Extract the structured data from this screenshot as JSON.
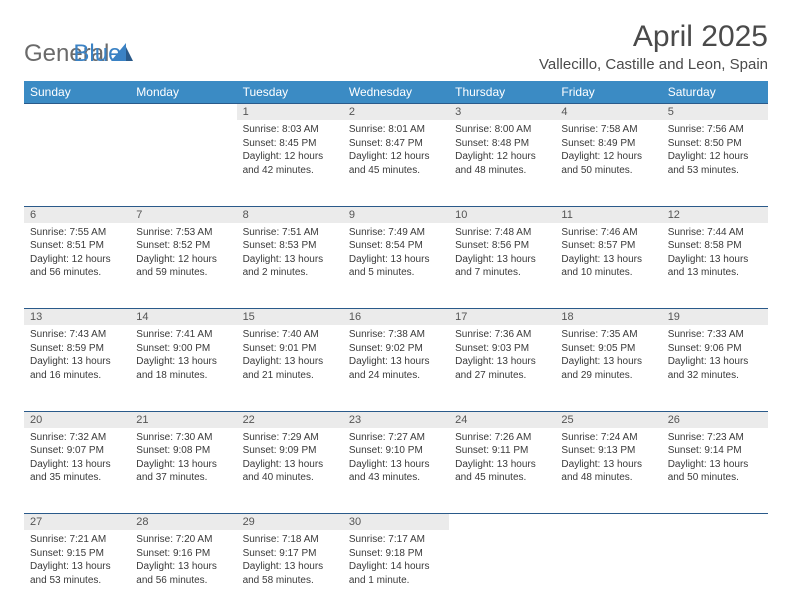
{
  "logo": {
    "part1": "General",
    "part2": "Blue"
  },
  "title": "April 2025",
  "location": "Vallecillo, Castille and Leon, Spain",
  "colors": {
    "header_bg": "#3b8bc4",
    "header_text": "#ffffff",
    "daynum_bg": "#ebebeb",
    "border": "#2a5a8a",
    "logo_gray": "#6a6a6a",
    "logo_blue": "#3b82c4"
  },
  "weekdays": [
    "Sunday",
    "Monday",
    "Tuesday",
    "Wednesday",
    "Thursday",
    "Friday",
    "Saturday"
  ],
  "weeks": [
    [
      null,
      null,
      {
        "n": "1",
        "sr": "8:03 AM",
        "ss": "8:45 PM",
        "dl": "12 hours and 42 minutes."
      },
      {
        "n": "2",
        "sr": "8:01 AM",
        "ss": "8:47 PM",
        "dl": "12 hours and 45 minutes."
      },
      {
        "n": "3",
        "sr": "8:00 AM",
        "ss": "8:48 PM",
        "dl": "12 hours and 48 minutes."
      },
      {
        "n": "4",
        "sr": "7:58 AM",
        "ss": "8:49 PM",
        "dl": "12 hours and 50 minutes."
      },
      {
        "n": "5",
        "sr": "7:56 AM",
        "ss": "8:50 PM",
        "dl": "12 hours and 53 minutes."
      }
    ],
    [
      {
        "n": "6",
        "sr": "7:55 AM",
        "ss": "8:51 PM",
        "dl": "12 hours and 56 minutes."
      },
      {
        "n": "7",
        "sr": "7:53 AM",
        "ss": "8:52 PM",
        "dl": "12 hours and 59 minutes."
      },
      {
        "n": "8",
        "sr": "7:51 AM",
        "ss": "8:53 PM",
        "dl": "13 hours and 2 minutes."
      },
      {
        "n": "9",
        "sr": "7:49 AM",
        "ss": "8:54 PM",
        "dl": "13 hours and 5 minutes."
      },
      {
        "n": "10",
        "sr": "7:48 AM",
        "ss": "8:56 PM",
        "dl": "13 hours and 7 minutes."
      },
      {
        "n": "11",
        "sr": "7:46 AM",
        "ss": "8:57 PM",
        "dl": "13 hours and 10 minutes."
      },
      {
        "n": "12",
        "sr": "7:44 AM",
        "ss": "8:58 PM",
        "dl": "13 hours and 13 minutes."
      }
    ],
    [
      {
        "n": "13",
        "sr": "7:43 AM",
        "ss": "8:59 PM",
        "dl": "13 hours and 16 minutes."
      },
      {
        "n": "14",
        "sr": "7:41 AM",
        "ss": "9:00 PM",
        "dl": "13 hours and 18 minutes."
      },
      {
        "n": "15",
        "sr": "7:40 AM",
        "ss": "9:01 PM",
        "dl": "13 hours and 21 minutes."
      },
      {
        "n": "16",
        "sr": "7:38 AM",
        "ss": "9:02 PM",
        "dl": "13 hours and 24 minutes."
      },
      {
        "n": "17",
        "sr": "7:36 AM",
        "ss": "9:03 PM",
        "dl": "13 hours and 27 minutes."
      },
      {
        "n": "18",
        "sr": "7:35 AM",
        "ss": "9:05 PM",
        "dl": "13 hours and 29 minutes."
      },
      {
        "n": "19",
        "sr": "7:33 AM",
        "ss": "9:06 PM",
        "dl": "13 hours and 32 minutes."
      }
    ],
    [
      {
        "n": "20",
        "sr": "7:32 AM",
        "ss": "9:07 PM",
        "dl": "13 hours and 35 minutes."
      },
      {
        "n": "21",
        "sr": "7:30 AM",
        "ss": "9:08 PM",
        "dl": "13 hours and 37 minutes."
      },
      {
        "n": "22",
        "sr": "7:29 AM",
        "ss": "9:09 PM",
        "dl": "13 hours and 40 minutes."
      },
      {
        "n": "23",
        "sr": "7:27 AM",
        "ss": "9:10 PM",
        "dl": "13 hours and 43 minutes."
      },
      {
        "n": "24",
        "sr": "7:26 AM",
        "ss": "9:11 PM",
        "dl": "13 hours and 45 minutes."
      },
      {
        "n": "25",
        "sr": "7:24 AM",
        "ss": "9:13 PM",
        "dl": "13 hours and 48 minutes."
      },
      {
        "n": "26",
        "sr": "7:23 AM",
        "ss": "9:14 PM",
        "dl": "13 hours and 50 minutes."
      }
    ],
    [
      {
        "n": "27",
        "sr": "7:21 AM",
        "ss": "9:15 PM",
        "dl": "13 hours and 53 minutes."
      },
      {
        "n": "28",
        "sr": "7:20 AM",
        "ss": "9:16 PM",
        "dl": "13 hours and 56 minutes."
      },
      {
        "n": "29",
        "sr": "7:18 AM",
        "ss": "9:17 PM",
        "dl": "13 hours and 58 minutes."
      },
      {
        "n": "30",
        "sr": "7:17 AM",
        "ss": "9:18 PM",
        "dl": "14 hours and 1 minute."
      },
      null,
      null,
      null
    ]
  ],
  "labels": {
    "sunrise": "Sunrise: ",
    "sunset": "Sunset: ",
    "daylight": "Daylight: "
  }
}
